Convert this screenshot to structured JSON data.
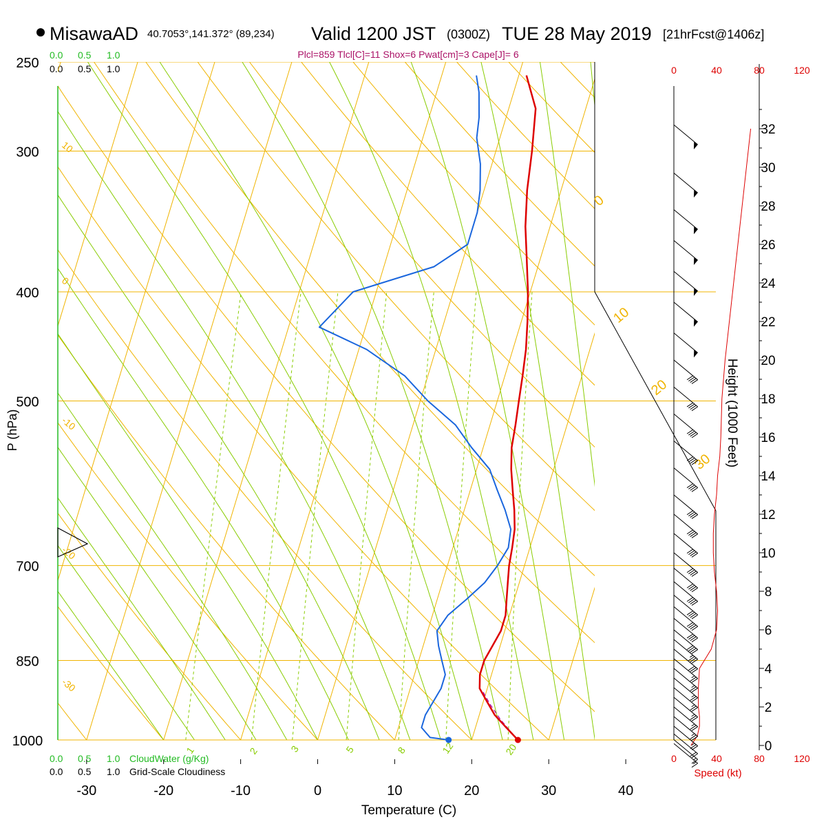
{
  "header": {
    "station": "MisawaAD",
    "coords": "40.7053°,141.372° (89,234)",
    "valid": "Valid 1200 JST",
    "utc": "(0300Z)",
    "date": "TUE 28 May 2019",
    "fcst": "[21hrFcst@1406z]",
    "indices": "Plcl=859 Tlcl[C]=11 Shox=6 Pwat[cm]=3 Cape[J]= 6"
  },
  "cloud_scale": {
    "top_labels": [
      "0.0",
      "0.5",
      "1.0"
    ],
    "bottom_labels": [
      "0.0",
      "0.5",
      "1.0"
    ],
    "cloudwater_label": "CloudWater (g/Kg)",
    "cloudiness_label": "Grid-Scale Cloudiness",
    "green": "#22bb22"
  },
  "speed_scale": {
    "labels": [
      "0",
      "40",
      "80",
      "120"
    ],
    "title": "Speed (kt)"
  },
  "chart_data": {
    "type": "line",
    "xlabel": "Temperature (C)",
    "ylabel": "P (hPa)",
    "right_ylabel": "Height (1000 Feet)",
    "x_ticks": [
      -30,
      -20,
      -10,
      0,
      10,
      20,
      30,
      40
    ],
    "p_ticks": [
      250,
      300,
      400,
      500,
      700,
      850,
      1000
    ],
    "height_ticks": [
      0,
      2,
      4,
      6,
      8,
      10,
      12,
      14,
      16,
      18,
      20,
      22,
      24,
      26,
      28,
      30,
      32
    ],
    "xlim": [
      -34,
      36
    ],
    "plim": [
      250,
      1000
    ],
    "isotherm_labels": [
      10,
      0,
      -10,
      -20,
      -30
    ],
    "dry_adiabat_labels": [
      0,
      10,
      20,
      30
    ],
    "mixing_ratio_labels": [
      1,
      2,
      3,
      5,
      8,
      12,
      20
    ],
    "mixing_ratios": [
      1,
      2,
      3,
      5,
      8,
      12,
      20
    ],
    "colors": {
      "temperature": "#dd0000",
      "dewpoint": "#1a66dd",
      "isobars_isotherms": "#f0b400",
      "moist_adiabats": "#88cc00",
      "mixing_ratio": "#88cc00",
      "speed": "#dd0000",
      "barbs": "#000000"
    },
    "series": [
      {
        "name": "temperature",
        "points": [
          [
            26,
            1000
          ],
          [
            24,
            975
          ],
          [
            22,
            950
          ],
          [
            20.5,
            925
          ],
          [
            19,
            900
          ],
          [
            18.5,
            875
          ],
          [
            18.5,
            850
          ],
          [
            19,
            825
          ],
          [
            19.5,
            800
          ],
          [
            19.5,
            775
          ],
          [
            19,
            750
          ],
          [
            18.5,
            725
          ],
          [
            18,
            700
          ],
          [
            17.7,
            675
          ],
          [
            17.3,
            650
          ],
          [
            16.5,
            625
          ],
          [
            15.5,
            600
          ],
          [
            14.5,
            575
          ],
          [
            13.7,
            550
          ],
          [
            13.3,
            525
          ],
          [
            12.8,
            500
          ],
          [
            12.3,
            475
          ],
          [
            11.7,
            450
          ],
          [
            10.8,
            425
          ],
          [
            9.7,
            400
          ],
          [
            8.3,
            375
          ],
          [
            6.8,
            350
          ],
          [
            5.6,
            325
          ],
          [
            4.7,
            300
          ],
          [
            3.5,
            275
          ],
          [
            1,
            257
          ]
        ]
      },
      {
        "name": "dewpoint",
        "points": [
          [
            17,
            1000
          ],
          [
            14.5,
            995
          ],
          [
            13,
            975
          ],
          [
            13,
            950
          ],
          [
            13.5,
            925
          ],
          [
            14,
            900
          ],
          [
            14,
            875
          ],
          [
            13,
            850
          ],
          [
            12,
            825
          ],
          [
            11.2,
            800
          ],
          [
            12,
            775
          ],
          [
            13.8,
            750
          ],
          [
            15.5,
            725
          ],
          [
            16.5,
            700
          ],
          [
            17.2,
            675
          ],
          [
            16.8,
            650
          ],
          [
            15.3,
            625
          ],
          [
            13.5,
            600
          ],
          [
            11.7,
            575
          ],
          [
            8.5,
            550
          ],
          [
            5.5,
            525
          ],
          [
            1,
            500
          ],
          [
            -3,
            475
          ],
          [
            -9,
            450
          ],
          [
            -16,
            430
          ],
          [
            -13,
            400
          ],
          [
            -3.5,
            380
          ],
          [
            0,
            363
          ],
          [
            0,
            340
          ],
          [
            -0.5,
            325
          ],
          [
            -1.5,
            308
          ],
          [
            -3,
            292
          ],
          [
            -3.5,
            280
          ],
          [
            -4.5,
            266
          ],
          [
            -5.5,
            257
          ]
        ]
      }
    ],
    "surface_markers": [
      {
        "name": "surface-temp",
        "x": 26,
        "p": 1000
      },
      {
        "name": "surface-dewpoint",
        "x": 17,
        "p": 1000
      }
    ],
    "parcel_path": [
      [
        26,
        1000
      ],
      [
        23,
        960
      ],
      [
        21,
        930
      ],
      [
        19.5,
        905
      ]
    ],
    "wind_profile": {
      "height_kft": [
        0,
        0.5,
        1,
        1.5,
        2,
        3,
        4,
        5,
        6,
        7,
        8,
        9,
        10,
        11,
        12,
        13,
        14,
        15,
        16,
        18,
        20,
        22,
        24,
        26,
        28,
        30,
        32
      ],
      "speed_kt": [
        16,
        22,
        24,
        24,
        23,
        23,
        24,
        35,
        40,
        41,
        40,
        38,
        37,
        37,
        38,
        40,
        41,
        43,
        44,
        45,
        48,
        52,
        56,
        60,
        64,
        68,
        72
      ]
    },
    "wind_barbs": [
      {
        "h": 32.2,
        "pennants": 1,
        "full": 0,
        "half": 0
      },
      {
        "h": 29.7,
        "pennants": 1,
        "full": 0,
        "half": 0
      },
      {
        "h": 27.8,
        "pennants": 1,
        "full": 0,
        "half": 0
      },
      {
        "h": 26.2,
        "pennants": 1,
        "full": 0,
        "half": 0
      },
      {
        "h": 24.6,
        "pennants": 1,
        "full": 0,
        "half": 0
      },
      {
        "h": 23.0,
        "pennants": 1,
        "full": 0,
        "half": 0
      },
      {
        "h": 21.4,
        "pennants": 1,
        "full": 0,
        "half": 0
      },
      {
        "h": 20.0,
        "pennants": 0,
        "full": 4,
        "half": 0
      },
      {
        "h": 18.6,
        "pennants": 0,
        "full": 4,
        "half": 0
      },
      {
        "h": 17.2,
        "pennants": 0,
        "full": 4,
        "half": 0
      },
      {
        "h": 15.8,
        "pennants": 0,
        "full": 4,
        "half": 0
      },
      {
        "h": 14.4,
        "pennants": 0,
        "full": 4,
        "half": 0
      },
      {
        "h": 13.0,
        "pennants": 0,
        "full": 4,
        "half": 0
      },
      {
        "h": 12.0,
        "pennants": 0,
        "full": 4,
        "half": 0
      },
      {
        "h": 11.0,
        "pennants": 0,
        "full": 4,
        "half": 0
      },
      {
        "h": 10.0,
        "pennants": 0,
        "full": 4,
        "half": 0
      },
      {
        "h": 9.2,
        "pennants": 0,
        "full": 4,
        "half": 0
      },
      {
        "h": 8.5,
        "pennants": 0,
        "full": 4,
        "half": 0
      },
      {
        "h": 7.8,
        "pennants": 0,
        "full": 4,
        "half": 0
      },
      {
        "h": 7.2,
        "pennants": 0,
        "full": 4,
        "half": 0
      },
      {
        "h": 6.6,
        "pennants": 0,
        "full": 4,
        "half": 0
      },
      {
        "h": 6.0,
        "pennants": 0,
        "full": 4,
        "half": 0
      },
      {
        "h": 5.5,
        "pennants": 0,
        "full": 3,
        "half": 1
      },
      {
        "h": 5.0,
        "pennants": 0,
        "full": 3,
        "half": 0
      },
      {
        "h": 4.5,
        "pennants": 0,
        "full": 2,
        "half": 1
      },
      {
        "h": 4.0,
        "pennants": 0,
        "full": 2,
        "half": 1
      },
      {
        "h": 3.5,
        "pennants": 0,
        "full": 2,
        "half": 1
      },
      {
        "h": 3.0,
        "pennants": 0,
        "full": 2,
        "half": 1
      },
      {
        "h": 2.5,
        "pennants": 0,
        "full": 2,
        "half": 1
      },
      {
        "h": 2.0,
        "pennants": 0,
        "full": 2,
        "half": 1
      },
      {
        "h": 1.5,
        "pennants": 0,
        "full": 2,
        "half": 1
      },
      {
        "h": 1.0,
        "pennants": 0,
        "full": 2,
        "half": 1
      },
      {
        "h": 0.6,
        "pennants": 0,
        "full": 2,
        "half": 0
      },
      {
        "h": 0.3,
        "pennants": 0,
        "full": 1,
        "half": 1
      },
      {
        "h": 0.1,
        "pennants": 0,
        "full": 1,
        "half": 1
      }
    ]
  }
}
